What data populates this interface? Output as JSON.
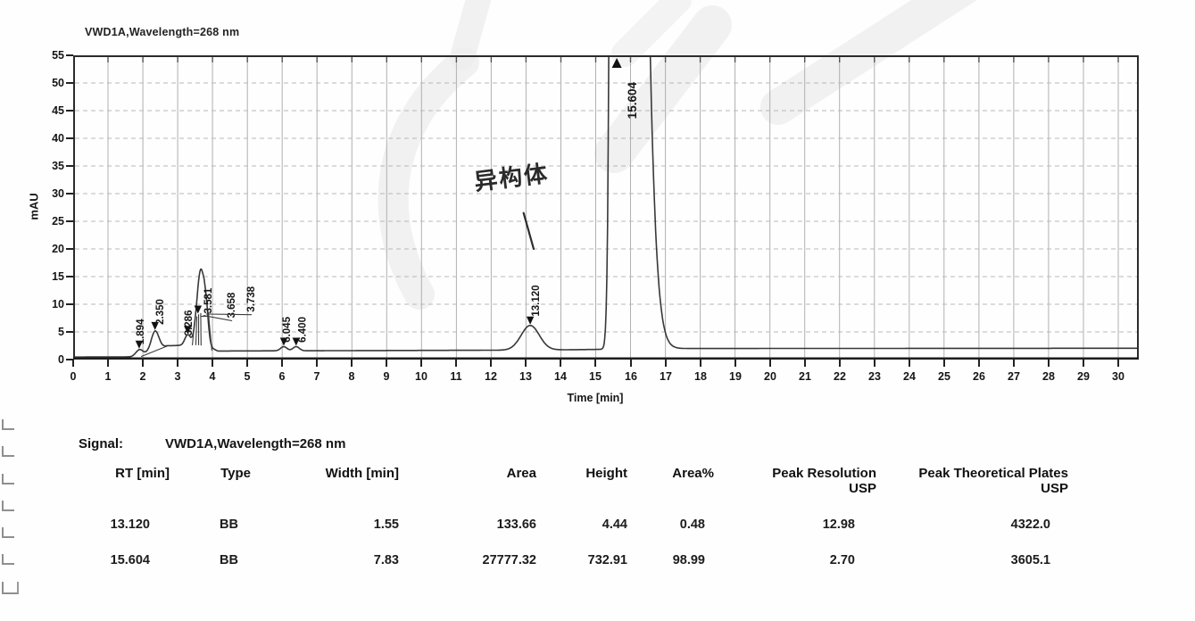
{
  "chart_data": {
    "type": "line",
    "title": "VWD1A,Wavelength=268 nm",
    "xlabel": "Time [min]",
    "ylabel": "mAU",
    "xlim": [
      0,
      30.6
    ],
    "ylim": [
      0,
      55
    ],
    "x_ticks": [
      0,
      1,
      2,
      3,
      4,
      5,
      6,
      7,
      8,
      9,
      10,
      11,
      12,
      13,
      14,
      15,
      16,
      17,
      18,
      19,
      20,
      21,
      22,
      23,
      24,
      25,
      26,
      27,
      28,
      29,
      30
    ],
    "y_ticks": [
      0,
      5,
      10,
      15,
      20,
      25,
      30,
      35,
      40,
      45,
      50,
      55
    ],
    "grid": {
      "vertical_every_min": 1,
      "horizontal_every_mau": 5,
      "style": "gray solid vertical, gray dashed horizontal"
    },
    "line_color": "#383838",
    "grid_color": "#b0b0b0",
    "baseline_points": [
      [
        0,
        0.45
      ],
      [
        1.85,
        0.5
      ],
      [
        2.7,
        2.5
      ],
      [
        3.35,
        2.6
      ],
      [
        3.95,
        2.2
      ],
      [
        4.15,
        1.55
      ],
      [
        12.5,
        1.7
      ],
      [
        14.2,
        1.78
      ],
      [
        17.6,
        2.0
      ],
      [
        30.6,
        2.05
      ]
    ],
    "peaks": [
      {
        "rt": 1.894,
        "label": "1.894",
        "height": 1.2,
        "sigma": 0.1,
        "marker": "down",
        "label_rt": 2.02,
        "label_base": 2.7
      },
      {
        "rt": 2.35,
        "label": "2.350",
        "height": 3.5,
        "sigma": 0.11,
        "marker": "down",
        "label_rt": 2.59,
        "label_base": 6.3
      },
      {
        "rt": 3.286,
        "label": "3.286",
        "height": 1.9,
        "sigma": 0.08,
        "marker": "down",
        "label_rt": 3.41,
        "label_base": 4.3
      },
      {
        "rt": 3.581,
        "label": "3.581",
        "height": 5.7,
        "sigma": 0.09,
        "marker": "down",
        "label_rt": 3.97,
        "label_base": 8.3
      },
      {
        "rt": 3.658,
        "label": "3.658",
        "height": 5.9,
        "sigma": 0.08,
        "marker": "none",
        "label_rt": 4.64,
        "label_base": 7.5
      },
      {
        "rt": 3.738,
        "label": "3.738",
        "height": 6.2,
        "sigma": 0.085,
        "sigma_right": 0.06,
        "marker": "none",
        "label_rt": 5.2,
        "label_base": 8.6
      },
      {
        "rt": 3.83,
        "label": "",
        "height": 5.8,
        "sigma": 0.06,
        "marker": "none"
      },
      {
        "rt": 6.045,
        "label": "6.045",
        "height": 0.75,
        "sigma": 0.09,
        "marker": "down",
        "label_rt": 6.22,
        "label_base": 3.1
      },
      {
        "rt": 6.4,
        "label": "6.400",
        "height": 0.75,
        "sigma": 0.09,
        "marker": "down",
        "label_rt": 6.68,
        "label_base": 3.1
      },
      {
        "rt": 13.12,
        "label": "13.120",
        "height": 4.44,
        "sigma": 0.26,
        "marker": "down",
        "label_rt": 13.37,
        "label_base": 7.8
      },
      {
        "rt": 15.604,
        "label": "15.604",
        "height": 732.91,
        "sigma": 0.1,
        "sigma_right": 0.42,
        "marker": "up",
        "label_rt": 16.17,
        "label_base": 43.5,
        "label_size": 13.5
      }
    ],
    "integration_lines": [
      [
        1.95,
        0.55,
        2.72,
        2.5
      ],
      [
        3.42,
        2.6,
        3.46,
        5.2
      ],
      [
        3.52,
        2.6,
        3.55,
        7.8
      ],
      [
        3.6,
        2.6,
        3.6,
        8.2
      ],
      [
        3.67,
        2.55,
        3.66,
        8.4
      ],
      [
        3.98,
        1.6,
        3.88,
        8.6
      ]
    ],
    "annotation": {
      "text": "异构体",
      "pointer_line": [
        12.93,
        26.5,
        13.22,
        20.0
      ]
    }
  },
  "signal": {
    "label": "Signal:",
    "value": "VWD1A,Wavelength=268 nm",
    "table": {
      "columns": [
        {
          "label": "RT [min]",
          "sub": ""
        },
        {
          "label": "Type",
          "sub": ""
        },
        {
          "label": "Width [min]",
          "sub": ""
        },
        {
          "label": "Area",
          "sub": ""
        },
        {
          "label": "Height",
          "sub": ""
        },
        {
          "label": "Area%",
          "sub": ""
        },
        {
          "label": "Peak Resolution",
          "sub": "USP"
        },
        {
          "label": "Peak Theoretical Plates",
          "sub": "USP"
        }
      ],
      "rows": [
        [
          "13.120",
          "BB",
          "1.55",
          "133.66",
          "4.44",
          "0.48",
          "12.98",
          "4322.0"
        ],
        [
          "15.604",
          "BB",
          "7.83",
          "27777.32",
          "732.91",
          "98.99",
          "2.70",
          "3605.1"
        ]
      ]
    }
  },
  "colors": {
    "curve": "#383838",
    "marker": "#111111",
    "axis": "#222222",
    "watermark": "#ededed"
  }
}
